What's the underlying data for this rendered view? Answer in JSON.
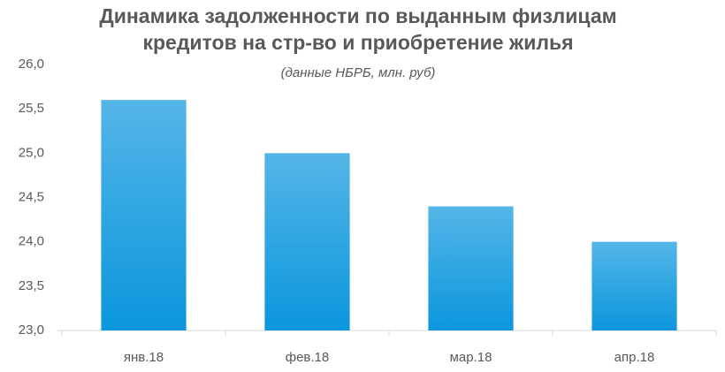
{
  "chart_data": {
    "type": "bar",
    "title": [
      "Динамика задолженности по выданным физлицам",
      "кредитов на стр-во и приобретение жилья"
    ],
    "subtitle": "(данные НБРБ, млн. руб)",
    "categories": [
      "янв.18",
      "фев.18",
      "мар.18",
      "апр.18"
    ],
    "values": [
      25.6,
      25.0,
      24.4,
      24.0
    ],
    "color": "#0b96dd",
    "ylim": [
      23.0,
      26.0
    ],
    "yticks": [
      {
        "value": 23.0,
        "label": "23,0"
      },
      {
        "value": 23.5,
        "label": "23,5"
      },
      {
        "value": 24.0,
        "label": "24,0"
      },
      {
        "value": 24.5,
        "label": "24,5"
      },
      {
        "value": 25.0,
        "label": "25,0"
      },
      {
        "value": 25.5,
        "label": "25,5"
      },
      {
        "value": 26.0,
        "label": "26,0"
      }
    ],
    "grid": false
  }
}
